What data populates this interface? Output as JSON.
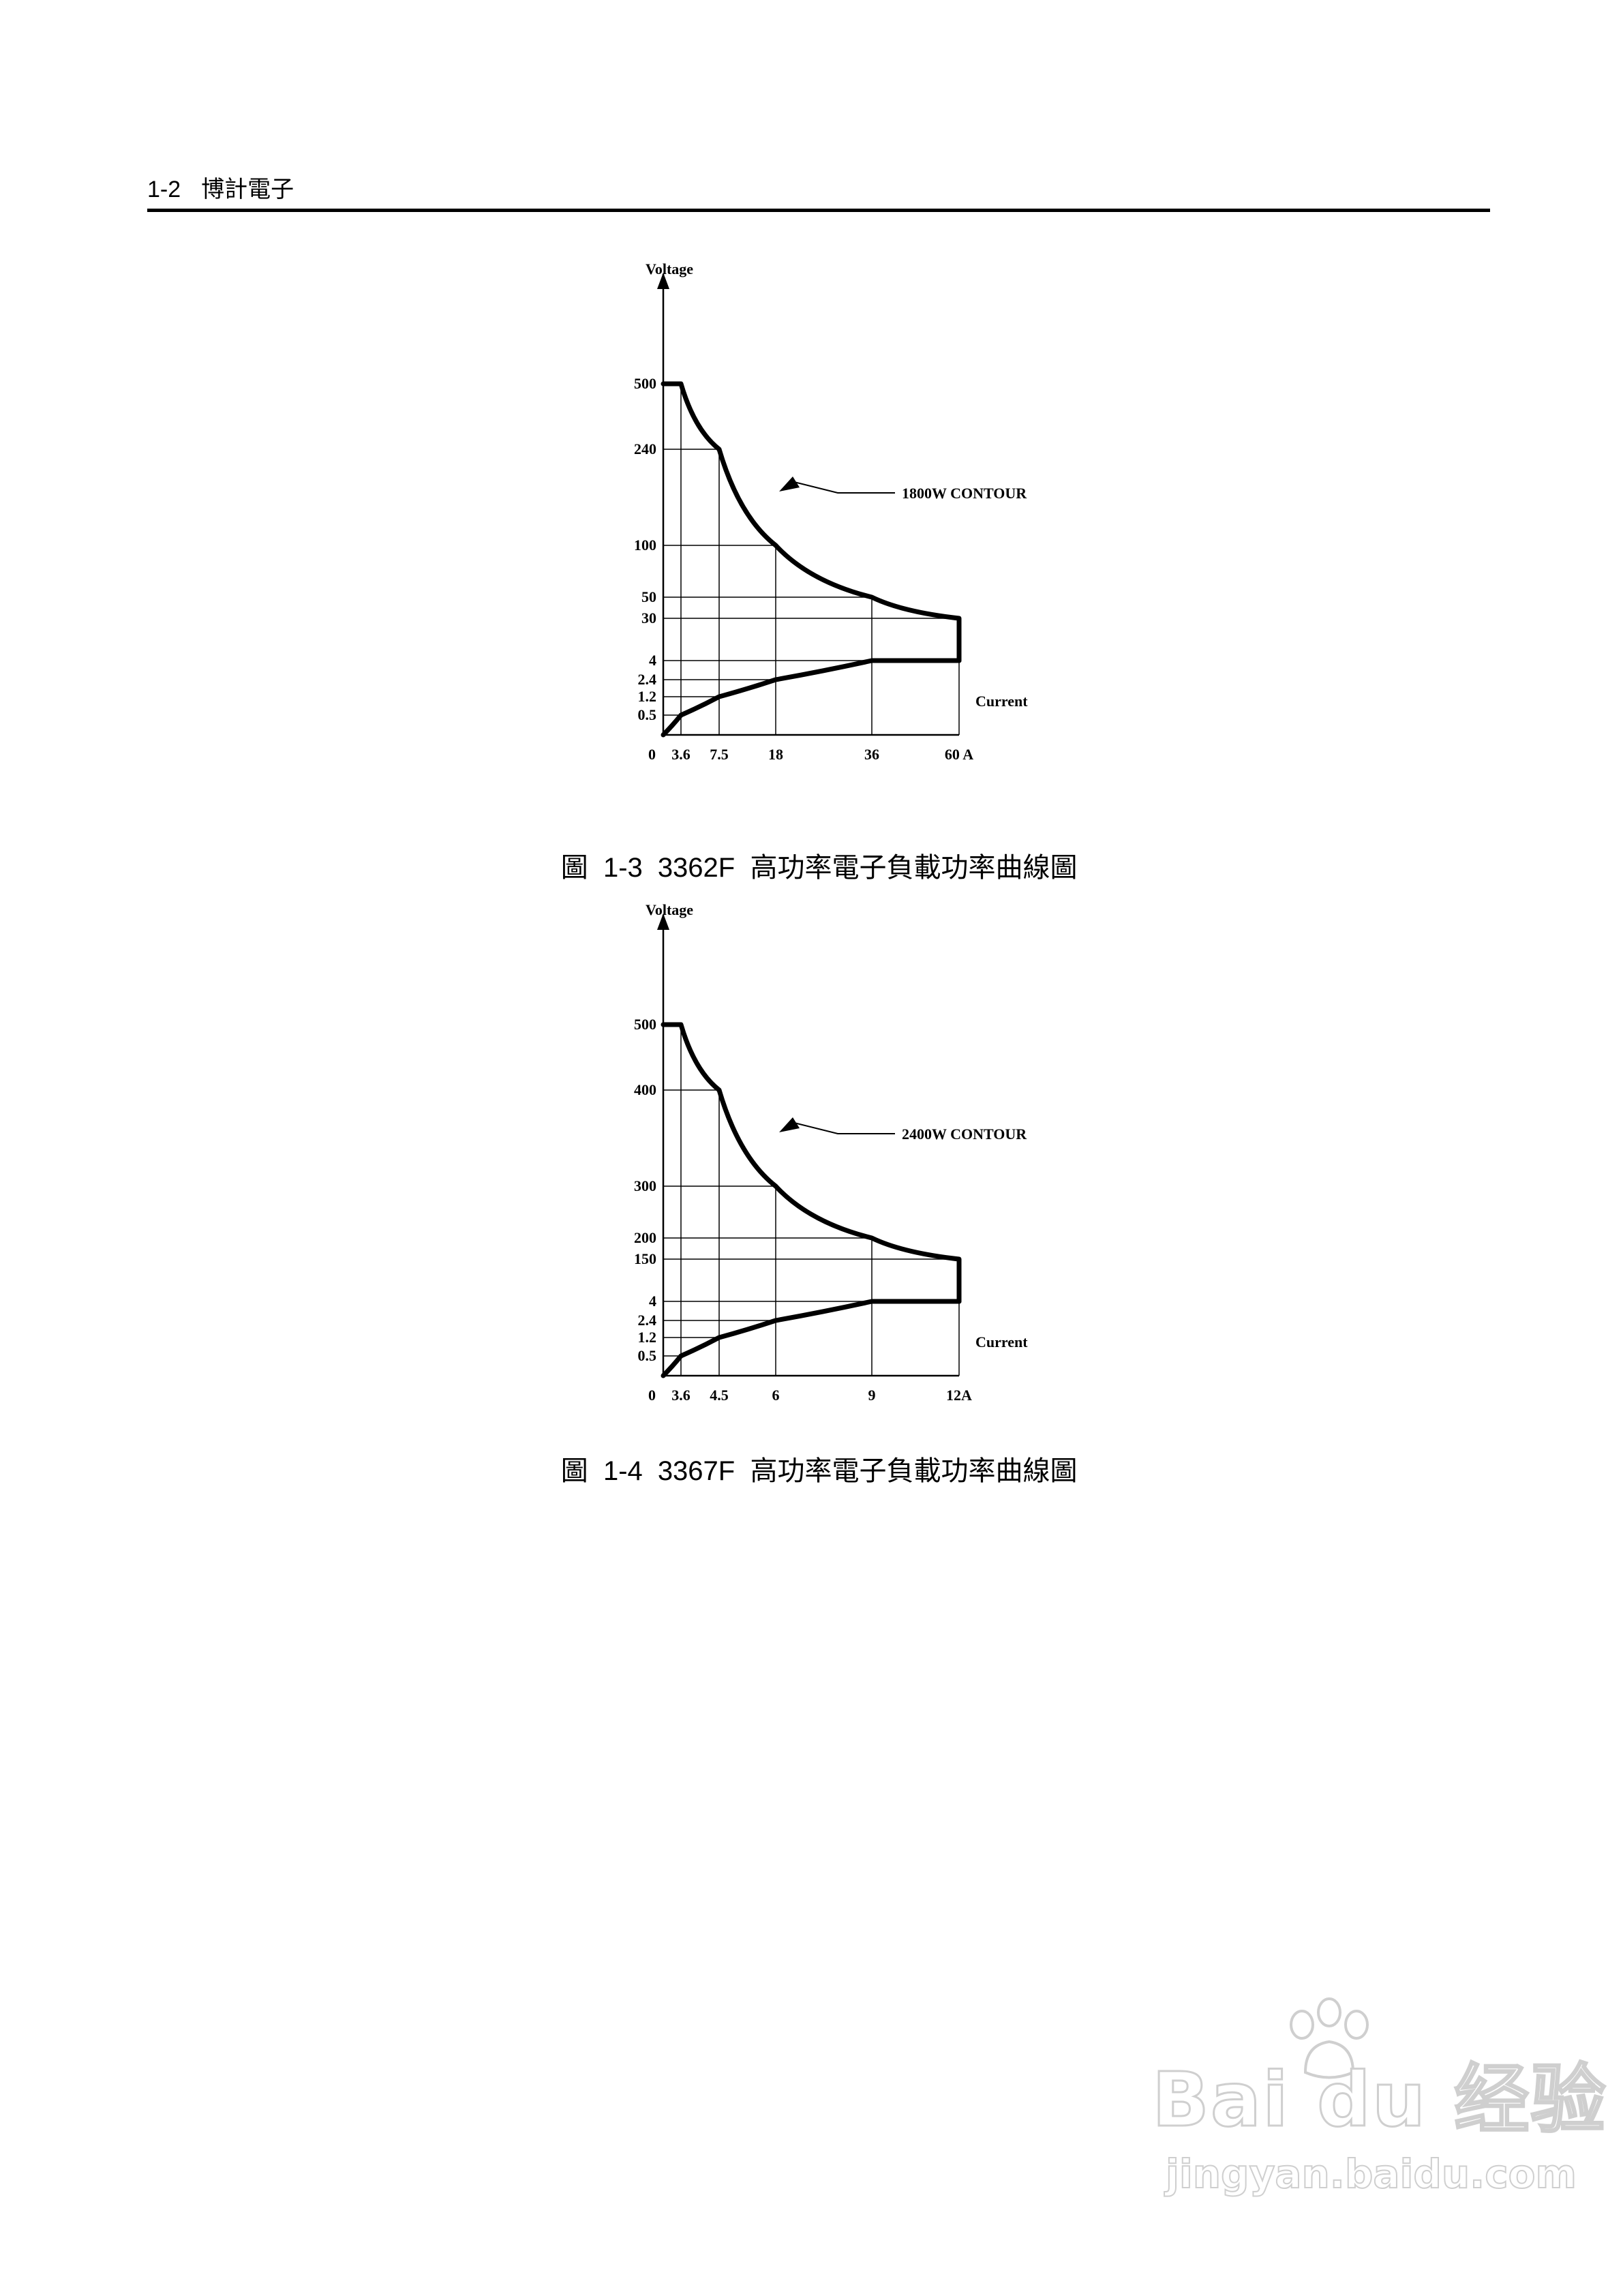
{
  "header": {
    "page_number": "1-2",
    "company": "博計電子"
  },
  "figures": [
    {
      "caption_number": "圖  1-3",
      "caption_text": "3362F  高功率電子負載功率曲線圖"
    },
    {
      "caption_number": "圖  1-4",
      "caption_text": "3367F  高功率電子負載功率曲線圖"
    }
  ],
  "chart_data": [
    {
      "type": "line",
      "title": "",
      "ylabel": "Voltage",
      "xlabel": "Current",
      "annotation": "1800W CONTOUR",
      "x_ticks": [
        "0",
        "3.6",
        "7.5",
        "18",
        "36",
        "60 A"
      ],
      "x_tick_values": [
        0,
        3.6,
        7.5,
        18,
        36,
        60
      ],
      "y_ticks": [
        "0.5",
        "1.2",
        "2.4",
        "4",
        "30",
        "50",
        "100",
        "240",
        "500"
      ],
      "y_tick_values": [
        0.5,
        1.2,
        2.4,
        4,
        30,
        50,
        100,
        240,
        500
      ],
      "scale": "non-uniform (categorical tick spacing)",
      "grid": "partial (vertical lines at x ticks, horizontal lines at y ticks)",
      "series": [
        {
          "x": [
            0,
            3.6,
            7.5,
            18,
            36,
            60,
            60
          ],
          "y": [
            500,
            500,
            240,
            100,
            50,
            30,
            4
          ]
        },
        {
          "x": [
            0,
            3.6,
            7.5,
            18,
            36,
            60
          ],
          "y": [
            0,
            0.5,
            1.2,
            2.4,
            4,
            4
          ]
        }
      ]
    },
    {
      "type": "line",
      "title": "",
      "ylabel": "Voltage",
      "xlabel": "Current",
      "annotation": "2400W CONTOUR",
      "x_ticks": [
        "0",
        "3.6",
        "4.5",
        "6",
        "9",
        "12A"
      ],
      "x_tick_values": [
        0,
        3.6,
        4.5,
        6,
        9,
        12
      ],
      "y_ticks": [
        "0.5",
        "1.2",
        "2.4",
        "4",
        "150",
        "200",
        "300",
        "400",
        "500"
      ],
      "y_tick_values": [
        0.5,
        1.2,
        2.4,
        4,
        150,
        200,
        300,
        400,
        500
      ],
      "scale": "non-uniform (categorical tick spacing)",
      "grid": "partial (vertical lines at x ticks, horizontal lines at y ticks)",
      "series": [
        {
          "x": [
            0,
            3.6,
            4.5,
            6,
            9,
            12,
            12
          ],
          "y": [
            500,
            500,
            400,
            300,
            200,
            150,
            4
          ]
        },
        {
          "x": [
            0,
            3.6,
            4.5,
            6,
            9,
            12
          ],
          "y": [
            0,
            0.5,
            1.2,
            2.4,
            4,
            4
          ]
        }
      ]
    }
  ],
  "watermark": {
    "logo_text": "Bai du 经验",
    "url_text": "jingyan.baidu.com"
  }
}
